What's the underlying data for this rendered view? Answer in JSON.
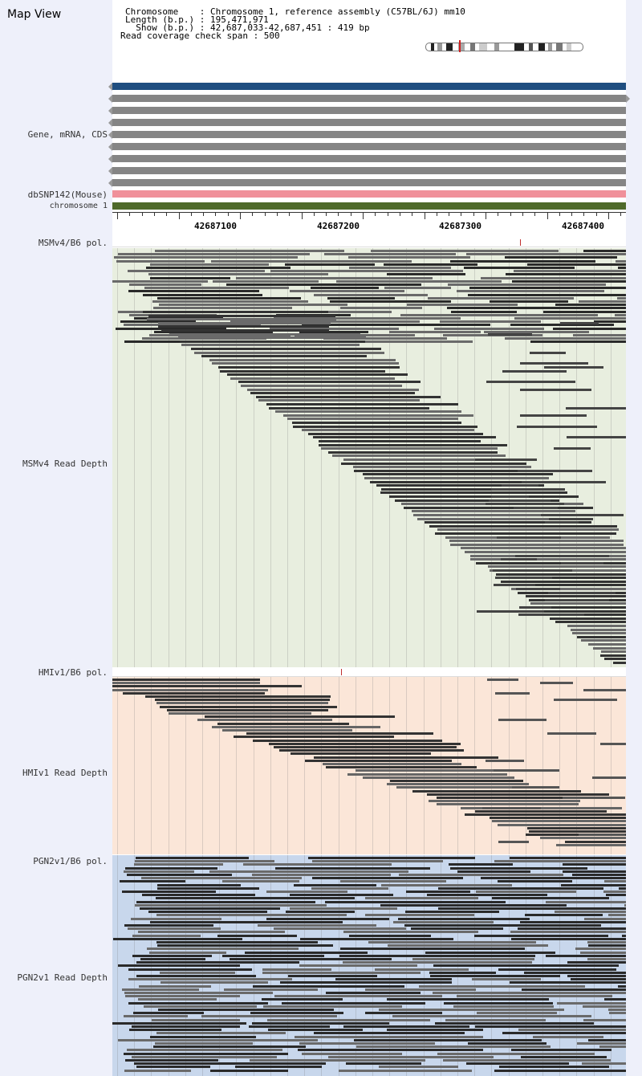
{
  "app_title": "Map View",
  "info": {
    "chromosome_line": "Chromosome    : Chromosome 1, reference assembly (C57BL/6J) mm10",
    "length_line": "Length (b.p.) : 195,471,971",
    "show_line": "  Show (b.p.) : 42,687,033-42,687,451 : 419 bp",
    "coverage_line": "Read coverage check span : 500"
  },
  "tracks": {
    "gene_label": "Gene, mRNA, CDS",
    "snp_label": "dbSNP142(Mouse)",
    "chrom_label": "chromosome 1"
  },
  "ruler": {
    "ticks": [
      "42687100",
      "42687200",
      "42687300",
      "42687400"
    ]
  },
  "panels": {
    "msm_pol_label": "MSMv4/B6 pol.",
    "msm_depth_label": "MSMv4 Read Depth",
    "hmi_pol_label": "HMIv1/B6 pol.",
    "hmi_depth_label": "HMIv1 Read Depth",
    "pgn_pol_label": "PGN2v1/B6 pol.",
    "pgn_depth_label": "PGN2v1 Read Depth"
  },
  "colors": {
    "gene_blue": "#1f4e80",
    "gene_gray": "#858585",
    "snp_pink": "#f0909a",
    "chrom_green": "#4f6a2a",
    "msm_bg": "#e8eedf",
    "hmi_bg": "#fbe6d8",
    "pgn_bg": "#c8d7ec",
    "polymorphism_red": "#c03030"
  }
}
